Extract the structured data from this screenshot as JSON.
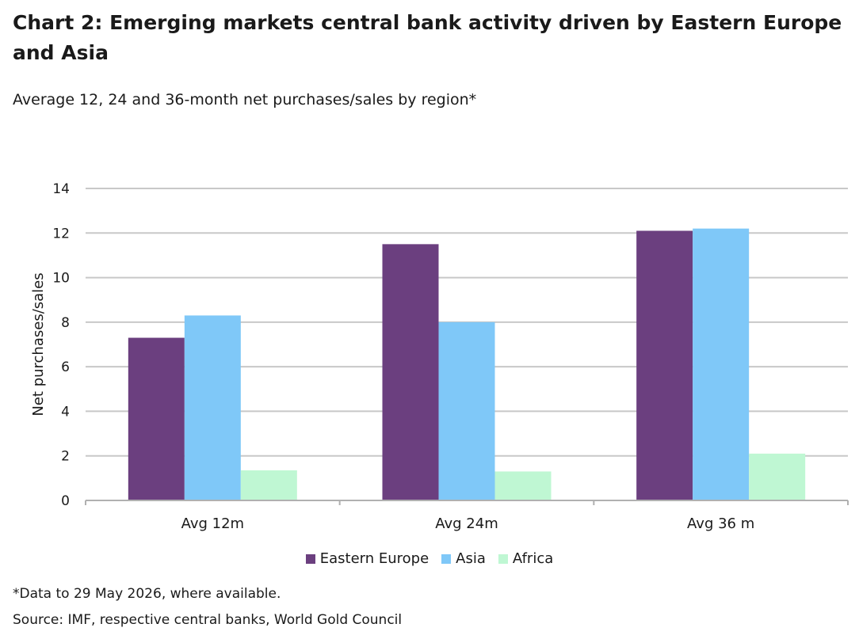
{
  "title": "Chart 2: Emerging markets central bank activity driven by Eastern Europe and Asia",
  "subtitle": "Average 12, 24 and 36-month net purchases/sales by region*",
  "footnote": "*Data to 29 May 2026, where available.",
  "source": "Source: IMF, respective central banks, World Gold Council",
  "chart_data": {
    "type": "bar",
    "categories": [
      "Avg 12m",
      "Avg 24m",
      "Avg 36 m"
    ],
    "series": [
      {
        "name": "Eastern Europe",
        "color": "#6b3f7f",
        "values": [
          7.3,
          11.5,
          12.1
        ]
      },
      {
        "name": "Asia",
        "color": "#7fc8f8",
        "values": [
          8.3,
          8.0,
          12.2
        ]
      },
      {
        "name": "Africa",
        "color": "#bff7d3",
        "values": [
          1.35,
          1.3,
          2.1
        ]
      }
    ],
    "ylabel": "Net purchases/sales",
    "ylim": [
      0,
      14
    ],
    "yticks": [
      0,
      2,
      4,
      6,
      8,
      10,
      12,
      14
    ],
    "grid": true,
    "legend_position": "bottom"
  }
}
